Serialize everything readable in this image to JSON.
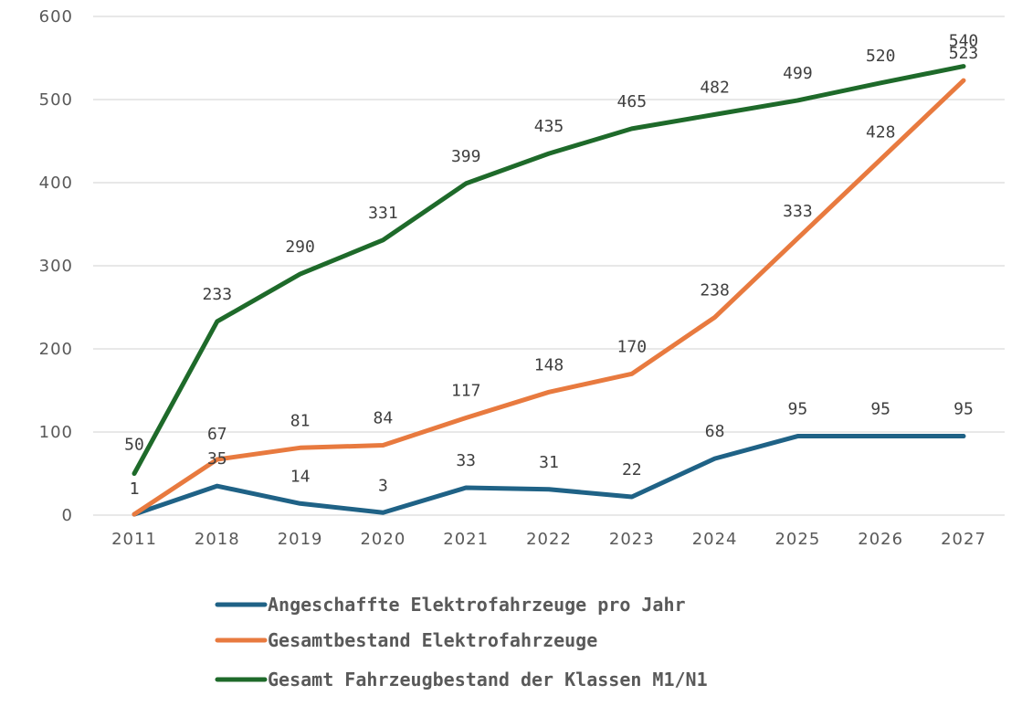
{
  "chart_data": {
    "type": "line",
    "categories": [
      "2011",
      "2018",
      "2019",
      "2020",
      "2021",
      "2022",
      "2023",
      "2024",
      "2025",
      "2026",
      "2027"
    ],
    "ylim": [
      0,
      600
    ],
    "yticks": [
      0,
      100,
      200,
      300,
      400,
      500,
      600
    ],
    "grid": true,
    "legend_position": "bottom",
    "series": [
      {
        "name": "Angeschaffte Elektrofahrzeuge pro Jahr",
        "color": "#1f6286",
        "values": [
          1,
          35,
          14,
          3,
          33,
          31,
          22,
          68,
          95,
          95,
          95
        ]
      },
      {
        "name": "Gesamtbestand Elektrofahrzeuge",
        "color": "#e87a3f",
        "values": [
          1,
          67,
          81,
          84,
          117,
          148,
          170,
          238,
          333,
          428,
          523
        ]
      },
      {
        "name": "Gesamt Fahrzeugbestand der Klassen M1/N1",
        "color": "#1e6a2a",
        "values": [
          50,
          233,
          290,
          331,
          399,
          435,
          465,
          482,
          499,
          520,
          540
        ]
      }
    ]
  }
}
